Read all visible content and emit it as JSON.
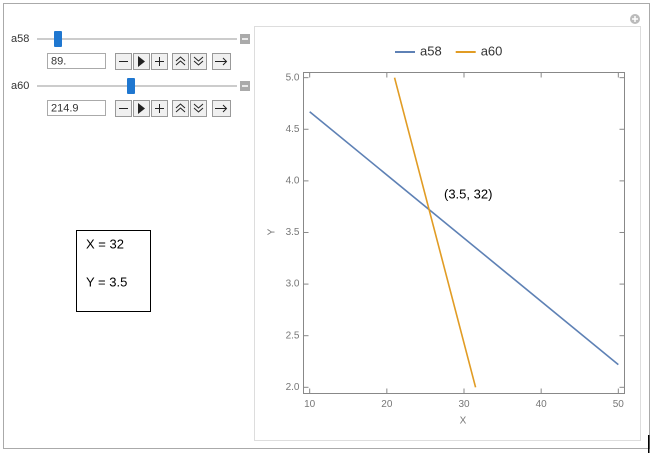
{
  "controls": [
    {
      "label": "a58",
      "input": "89."
    },
    {
      "label": "a60",
      "input": "214.9"
    }
  ],
  "result": {
    "lines": [
      "X = 32",
      "Y = 3.5"
    ]
  },
  "chart_data": {
    "type": "line",
    "legend": "top",
    "series": [
      {
        "name": "a58",
        "color": "#5e81b5",
        "x": [
          10,
          50
        ],
        "values": [
          4.67,
          2.22
        ]
      },
      {
        "name": "a60",
        "color": "#e19c24",
        "x": [
          21,
          31.5
        ],
        "values": [
          5.0,
          2.0
        ]
      }
    ],
    "xlim": [
      9.2,
      50.8
    ],
    "ylim": [
      1.94,
      5.05
    ],
    "xticks": [
      10,
      20,
      30,
      40,
      50
    ],
    "yticks": [
      {
        "value": 2,
        "label": "2.0"
      },
      2.5,
      {
        "value": 3,
        "label": "3.0"
      },
      3.5,
      {
        "value": 4,
        "label": "4.0"
      },
      4.5,
      {
        "value": 5,
        "label": "5.0"
      }
    ],
    "xlabel": "X",
    "ylabel": "Y",
    "annotation": "(3.5, 32)"
  }
}
